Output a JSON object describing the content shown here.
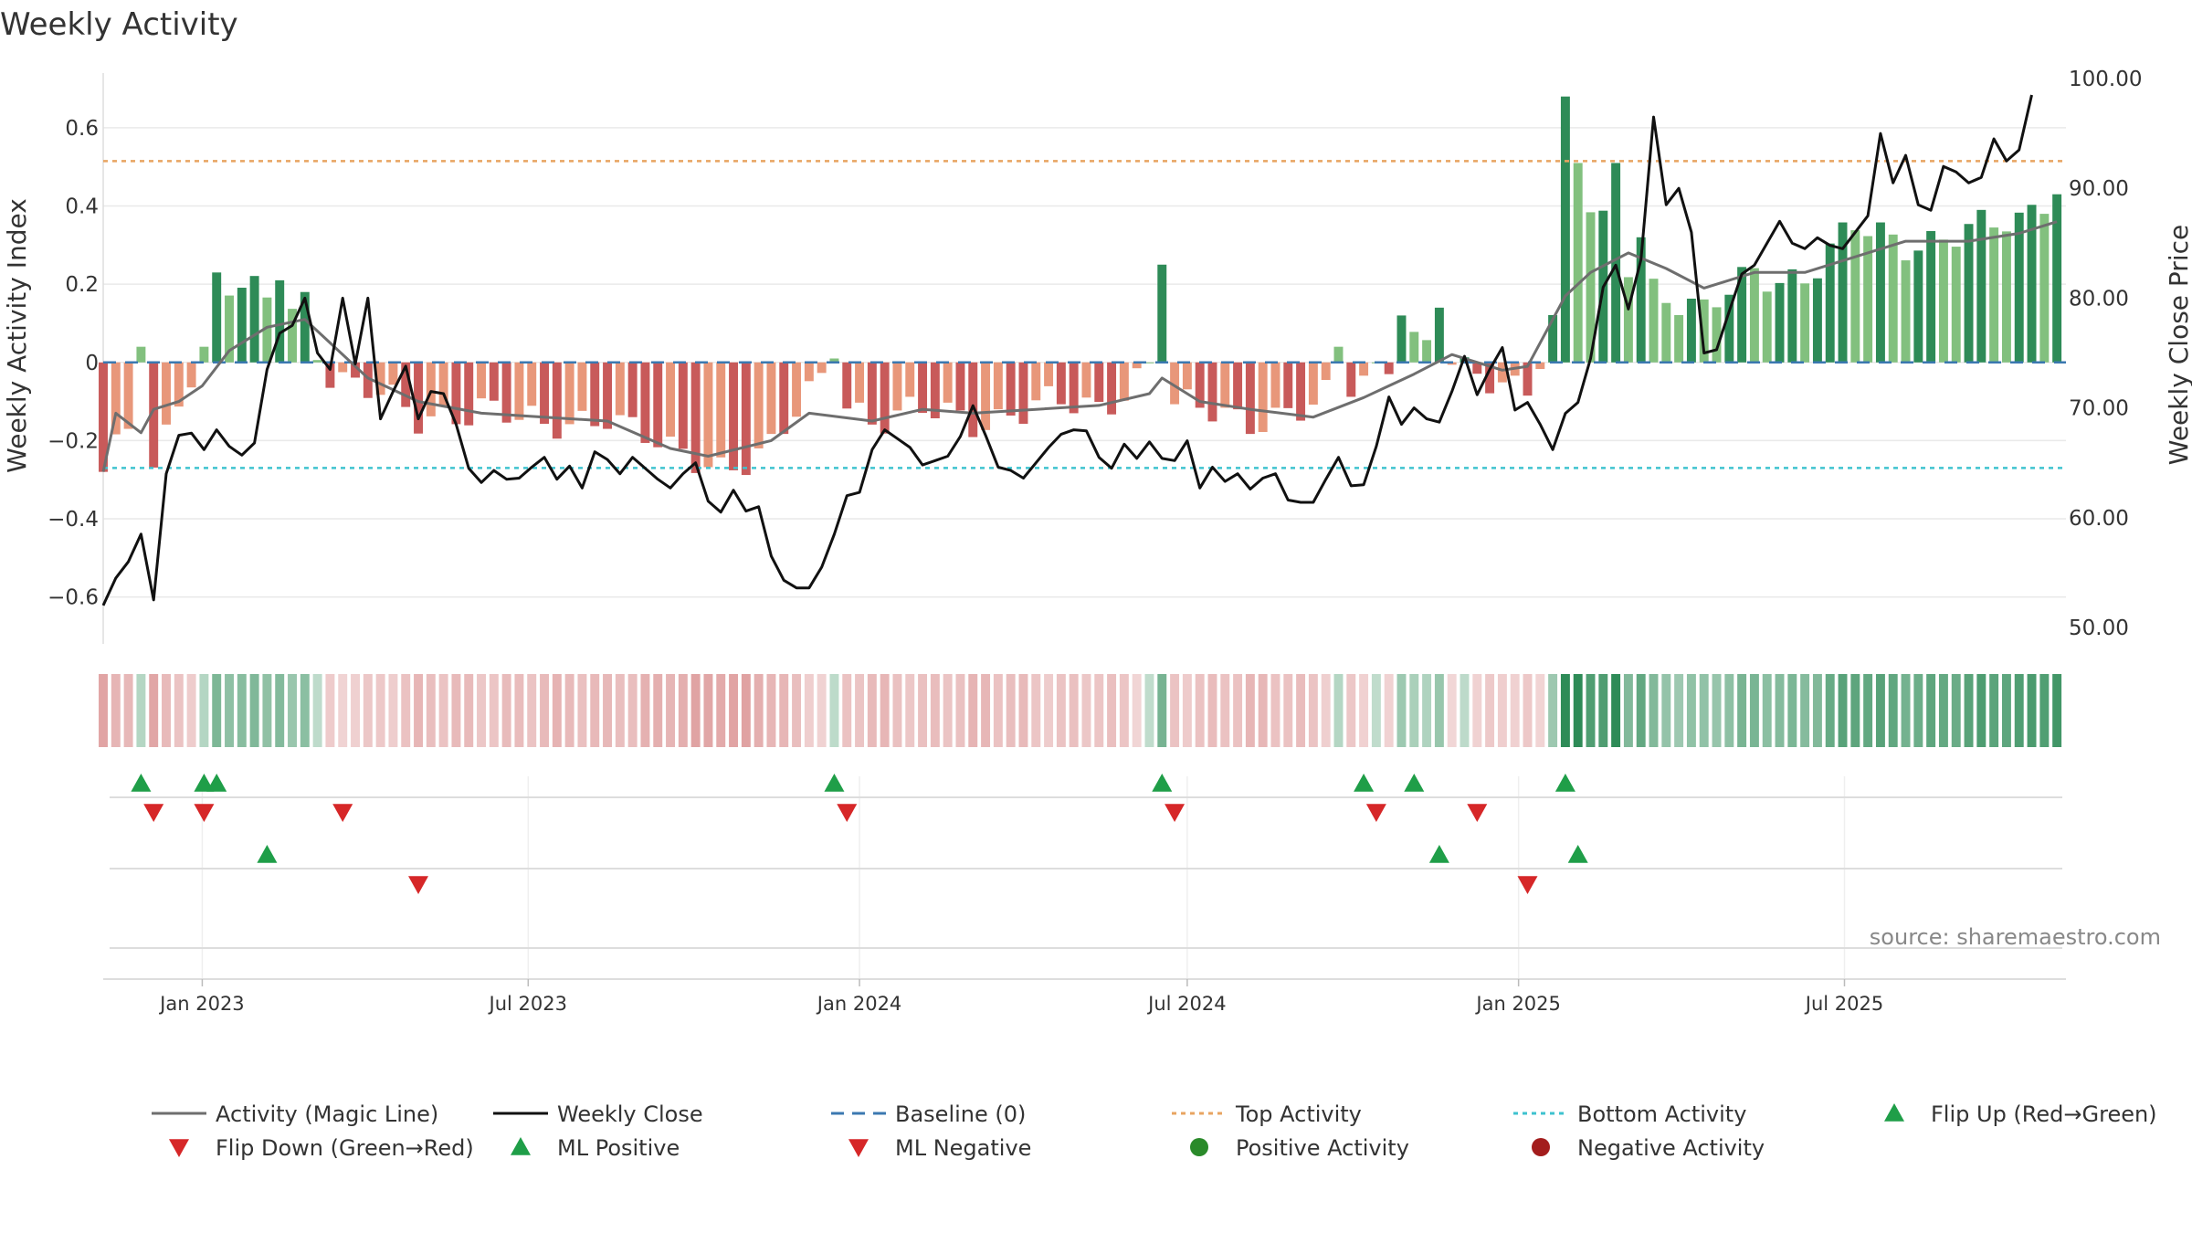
{
  "title": "Weekly Activity",
  "source": "source: sharemaestro.com",
  "colors": {
    "pos_dark": "#2e8b57",
    "pos_light": "#82c07e",
    "neg_dark": "#c85a5a",
    "neg_light": "#e8977a",
    "magic_line": "#6e6e6e",
    "close_line": "#111111",
    "baseline": "#3b78b0",
    "top_line": "#e8a461",
    "bottom_line": "#3ec2cf",
    "flip_up": "#1f9e48",
    "flip_down": "#d62728",
    "pos_dot": "#2a8a2a",
    "neg_dot": "#a31d1d",
    "grid": "#e9e9e9"
  },
  "chart_data": {
    "type": "bar",
    "title": "Weekly Activity",
    "ylabel_left": "Weekly Activity Index",
    "ylabel_right": "Weekly Close Price",
    "ylim_left": [
      -0.72,
      0.74
    ],
    "ylim_right": [
      48.5,
      100.5
    ],
    "yticks_left": [
      0.6,
      0.4,
      0.2,
      0,
      -0.2,
      -0.4,
      -0.6
    ],
    "yticks_left_labels": [
      "0.6",
      "0.4",
      "0.2",
      "0",
      "−0.2",
      "−0.4",
      "−0.6"
    ],
    "yticks_right": [
      100,
      90,
      80,
      70,
      60,
      50
    ],
    "yticks_right_labels": [
      "100.00",
      "90.00",
      "80.00",
      "70.00",
      "60.00",
      "50.00"
    ],
    "x_start": "2022-11-07",
    "x_end": "2025-11-01",
    "xticks": [
      "2023-01-01",
      "2023-07-01",
      "2024-01-01",
      "2024-07-01",
      "2025-01-01",
      "2025-07-01"
    ],
    "xtick_labels": [
      "Jan 2023",
      "Jul 2023",
      "Jan 2024",
      "Jul 2024",
      "Jan 2025",
      "Jul 2025"
    ],
    "top_activity": 0.515,
    "bottom_activity": -0.27,
    "baseline": 0,
    "anchors_activity": [
      {
        "date": "2022-11-07",
        "v": -0.28
      },
      {
        "date": "2022-11-21",
        "v": -0.18
      },
      {
        "date": "2022-12-05",
        "v": -0.3
      },
      {
        "date": "2022-12-19",
        "v": -0.08
      },
      {
        "date": "2023-01-02",
        "v": 0.03
      },
      {
        "date": "2023-01-16",
        "v": 0.21
      },
      {
        "date": "2023-02-06",
        "v": 0.15
      },
      {
        "date": "2023-02-27",
        "v": 0.1
      },
      {
        "date": "2023-03-13",
        "v": -0.02
      },
      {
        "date": "2023-04-03",
        "v": -0.06
      },
      {
        "date": "2023-05-01",
        "v": -0.16
      },
      {
        "date": "2023-06-05",
        "v": -0.1
      },
      {
        "date": "2023-07-10",
        "v": -0.18
      },
      {
        "date": "2023-08-14",
        "v": -0.12
      },
      {
        "date": "2023-09-18",
        "v": -0.24
      },
      {
        "date": "2023-10-16",
        "v": -0.26
      },
      {
        "date": "2023-11-13",
        "v": -0.22
      },
      {
        "date": "2023-12-11",
        "v": -0.05
      },
      {
        "date": "2024-01-08",
        "v": -0.14
      },
      {
        "date": "2024-02-05",
        "v": -0.13
      },
      {
        "date": "2024-03-04",
        "v": -0.15
      },
      {
        "date": "2024-04-08",
        "v": -0.11
      },
      {
        "date": "2024-05-13",
        "v": -0.12
      },
      {
        "date": "2024-06-10",
        "v": 0.0
      },
      {
        "date": "2024-06-24",
        "v": -0.12
      },
      {
        "date": "2024-08-05",
        "v": -0.14
      },
      {
        "date": "2024-09-09",
        "v": -0.12
      },
      {
        "date": "2024-10-07",
        "v": -0.04
      },
      {
        "date": "2024-11-04",
        "v": 0.06
      },
      {
        "date": "2024-12-02",
        "v": -0.04
      },
      {
        "date": "2025-01-06",
        "v": -0.05
      },
      {
        "date": "2025-01-20",
        "v": 0.1
      },
      {
        "date": "2025-02-10",
        "v": 0.38
      },
      {
        "date": "2025-03-10",
        "v": 0.22
      },
      {
        "date": "2025-04-14",
        "v": 0.12
      },
      {
        "date": "2025-05-12",
        "v": 0.23
      },
      {
        "date": "2025-06-09",
        "v": 0.22
      },
      {
        "date": "2025-07-07",
        "v": 0.34
      },
      {
        "date": "2025-08-04",
        "v": 0.31
      },
      {
        "date": "2025-09-08",
        "v": 0.33
      },
      {
        "date": "2025-10-06",
        "v": 0.36
      },
      {
        "date": "2025-10-20",
        "v": 0.43
      }
    ],
    "spikes": [
      {
        "date": "2022-11-28",
        "v": 0.04
      },
      {
        "date": "2023-01-09",
        "v": 0.23
      },
      {
        "date": "2023-02-13",
        "v": 0.21
      },
      {
        "date": "2023-02-27",
        "v": 0.18
      },
      {
        "date": "2023-12-18",
        "v": 0.01
      },
      {
        "date": "2024-06-17",
        "v": 0.25
      },
      {
        "date": "2024-09-23",
        "v": 0.04
      },
      {
        "date": "2024-10-28",
        "v": 0.12
      },
      {
        "date": "2024-11-18",
        "v": 0.14
      },
      {
        "date": "2025-01-27",
        "v": 0.68
      },
      {
        "date": "2025-02-03",
        "v": 0.51
      },
      {
        "date": "2025-02-24",
        "v": 0.51
      },
      {
        "date": "2025-03-10",
        "v": 0.32
      },
      {
        "date": "2025-10-27",
        "v": 0.43
      }
    ],
    "magic_line": [
      {
        "date": "2022-11-07",
        "v": -0.28
      },
      {
        "date": "2022-11-14",
        "v": -0.13
      },
      {
        "date": "2022-11-28",
        "v": -0.18
      },
      {
        "date": "2022-12-05",
        "v": -0.12
      },
      {
        "date": "2022-12-19",
        "v": -0.1
      },
      {
        "date": "2023-01-01",
        "v": -0.06
      },
      {
        "date": "2023-01-16",
        "v": 0.03
      },
      {
        "date": "2023-02-06",
        "v": 0.09
      },
      {
        "date": "2023-02-27",
        "v": 0.11
      },
      {
        "date": "2023-03-13",
        "v": 0.05
      },
      {
        "date": "2023-04-03",
        "v": -0.04
      },
      {
        "date": "2023-05-01",
        "v": -0.1
      },
      {
        "date": "2023-06-05",
        "v": -0.13
      },
      {
        "date": "2023-07-10",
        "v": -0.14
      },
      {
        "date": "2023-08-14",
        "v": -0.15
      },
      {
        "date": "2023-09-18",
        "v": -0.22
      },
      {
        "date": "2023-10-09",
        "v": -0.24
      },
      {
        "date": "2023-11-13",
        "v": -0.2
      },
      {
        "date": "2023-12-04",
        "v": -0.13
      },
      {
        "date": "2024-01-08",
        "v": -0.15
      },
      {
        "date": "2024-02-05",
        "v": -0.12
      },
      {
        "date": "2024-03-04",
        "v": -0.13
      },
      {
        "date": "2024-04-08",
        "v": -0.12
      },
      {
        "date": "2024-05-13",
        "v": -0.11
      },
      {
        "date": "2024-06-10",
        "v": -0.08
      },
      {
        "date": "2024-06-17",
        "v": -0.04
      },
      {
        "date": "2024-07-08",
        "v": -0.1
      },
      {
        "date": "2024-08-05",
        "v": -0.12
      },
      {
        "date": "2024-09-09",
        "v": -0.14
      },
      {
        "date": "2024-10-07",
        "v": -0.09
      },
      {
        "date": "2024-11-04",
        "v": -0.03
      },
      {
        "date": "2024-11-25",
        "v": 0.02
      },
      {
        "date": "2024-12-23",
        "v": -0.02
      },
      {
        "date": "2025-01-06",
        "v": -0.01
      },
      {
        "date": "2025-01-27",
        "v": 0.17
      },
      {
        "date": "2025-02-10",
        "v": 0.23
      },
      {
        "date": "2025-03-03",
        "v": 0.28
      },
      {
        "date": "2025-03-24",
        "v": 0.24
      },
      {
        "date": "2025-04-14",
        "v": 0.19
      },
      {
        "date": "2025-05-12",
        "v": 0.23
      },
      {
        "date": "2025-06-09",
        "v": 0.23
      },
      {
        "date": "2025-07-07",
        "v": 0.27
      },
      {
        "date": "2025-08-04",
        "v": 0.31
      },
      {
        "date": "2025-09-08",
        "v": 0.31
      },
      {
        "date": "2025-10-06",
        "v": 0.33
      },
      {
        "date": "2025-10-27",
        "v": 0.36
      }
    ],
    "weekly_close": [
      {
        "date": "2022-11-07",
        "v": 52.0
      },
      {
        "date": "2022-11-14",
        "v": 54.5
      },
      {
        "date": "2022-11-21",
        "v": 56.0
      },
      {
        "date": "2022-11-28",
        "v": 58.5
      },
      {
        "date": "2022-12-05",
        "v": 52.5
      },
      {
        "date": "2022-12-12",
        "v": 64.0
      },
      {
        "date": "2022-12-19",
        "v": 67.5
      },
      {
        "date": "2022-12-26",
        "v": 67.7
      },
      {
        "date": "2023-01-02",
        "v": 66.2
      },
      {
        "date": "2023-01-09",
        "v": 68.0
      },
      {
        "date": "2023-01-16",
        "v": 66.5
      },
      {
        "date": "2023-01-23",
        "v": 65.7
      },
      {
        "date": "2023-01-30",
        "v": 66.8
      },
      {
        "date": "2023-02-06",
        "v": 73.5
      },
      {
        "date": "2023-02-13",
        "v": 76.8
      },
      {
        "date": "2023-02-20",
        "v": 77.5
      },
      {
        "date": "2023-02-27",
        "v": 80.0
      },
      {
        "date": "2023-03-06",
        "v": 75.0
      },
      {
        "date": "2023-03-13",
        "v": 73.5
      },
      {
        "date": "2023-03-20",
        "v": 80.0
      },
      {
        "date": "2023-03-27",
        "v": 74.0
      },
      {
        "date": "2023-04-03",
        "v": 80.0
      },
      {
        "date": "2023-04-10",
        "v": 69.0
      },
      {
        "date": "2023-04-17",
        "v": 71.5
      },
      {
        "date": "2023-04-24",
        "v": 73.8
      },
      {
        "date": "2023-05-01",
        "v": 69.0
      },
      {
        "date": "2023-05-08",
        "v": 71.5
      },
      {
        "date": "2023-05-15",
        "v": 71.3
      },
      {
        "date": "2023-05-22",
        "v": 68.5
      },
      {
        "date": "2023-05-29",
        "v": 64.5
      },
      {
        "date": "2023-06-05",
        "v": 63.2
      },
      {
        "date": "2023-06-12",
        "v": 64.3
      },
      {
        "date": "2023-06-19",
        "v": 63.5
      },
      {
        "date": "2023-06-26",
        "v": 63.6
      },
      {
        "date": "2023-07-03",
        "v": 64.6
      },
      {
        "date": "2023-07-10",
        "v": 65.5
      },
      {
        "date": "2023-07-17",
        "v": 63.5
      },
      {
        "date": "2023-07-24",
        "v": 64.7
      },
      {
        "date": "2023-07-31",
        "v": 62.7
      },
      {
        "date": "2023-08-07",
        "v": 66.0
      },
      {
        "date": "2023-08-14",
        "v": 65.3
      },
      {
        "date": "2023-08-21",
        "v": 64.0
      },
      {
        "date": "2023-08-28",
        "v": 65.5
      },
      {
        "date": "2023-09-04",
        "v": 64.5
      },
      {
        "date": "2023-09-11",
        "v": 63.5
      },
      {
        "date": "2023-09-18",
        "v": 62.7
      },
      {
        "date": "2023-09-25",
        "v": 64.0
      },
      {
        "date": "2023-10-02",
        "v": 65.0
      },
      {
        "date": "2023-10-09",
        "v": 61.5
      },
      {
        "date": "2023-10-16",
        "v": 60.5
      },
      {
        "date": "2023-10-23",
        "v": 62.5
      },
      {
        "date": "2023-10-30",
        "v": 60.6
      },
      {
        "date": "2023-11-06",
        "v": 61.0
      },
      {
        "date": "2023-11-13",
        "v": 56.5
      },
      {
        "date": "2023-11-20",
        "v": 54.3
      },
      {
        "date": "2023-11-27",
        "v": 53.6
      },
      {
        "date": "2023-12-04",
        "v": 53.6
      },
      {
        "date": "2023-12-11",
        "v": 55.5
      },
      {
        "date": "2023-12-18",
        "v": 58.5
      },
      {
        "date": "2023-12-25",
        "v": 62.0
      },
      {
        "date": "2024-01-01",
        "v": 62.3
      },
      {
        "date": "2024-01-08",
        "v": 66.2
      },
      {
        "date": "2024-01-15",
        "v": 68.0
      },
      {
        "date": "2024-01-22",
        "v": 67.2
      },
      {
        "date": "2024-01-29",
        "v": 66.4
      },
      {
        "date": "2024-02-05",
        "v": 64.8
      },
      {
        "date": "2024-02-12",
        "v": 65.2
      },
      {
        "date": "2024-02-19",
        "v": 65.6
      },
      {
        "date": "2024-02-26",
        "v": 67.4
      },
      {
        "date": "2024-03-04",
        "v": 70.2
      },
      {
        "date": "2024-03-11",
        "v": 67.5
      },
      {
        "date": "2024-03-18",
        "v": 64.6
      },
      {
        "date": "2024-03-25",
        "v": 64.3
      },
      {
        "date": "2024-04-01",
        "v": 63.6
      },
      {
        "date": "2024-04-08",
        "v": 65.0
      },
      {
        "date": "2024-04-15",
        "v": 66.4
      },
      {
        "date": "2024-04-22",
        "v": 67.6
      },
      {
        "date": "2024-04-29",
        "v": 68.0
      },
      {
        "date": "2024-05-06",
        "v": 67.9
      },
      {
        "date": "2024-05-13",
        "v": 65.5
      },
      {
        "date": "2024-05-20",
        "v": 64.5
      },
      {
        "date": "2024-05-27",
        "v": 66.7
      },
      {
        "date": "2024-06-03",
        "v": 65.4
      },
      {
        "date": "2024-06-10",
        "v": 66.9
      },
      {
        "date": "2024-06-17",
        "v": 65.4
      },
      {
        "date": "2024-06-24",
        "v": 65.2
      },
      {
        "date": "2024-07-01",
        "v": 67.0
      },
      {
        "date": "2024-07-08",
        "v": 62.7
      },
      {
        "date": "2024-07-15",
        "v": 64.6
      },
      {
        "date": "2024-07-22",
        "v": 63.3
      },
      {
        "date": "2024-07-29",
        "v": 64.0
      },
      {
        "date": "2024-08-05",
        "v": 62.6
      },
      {
        "date": "2024-08-12",
        "v": 63.6
      },
      {
        "date": "2024-08-19",
        "v": 64.0
      },
      {
        "date": "2024-08-26",
        "v": 61.6
      },
      {
        "date": "2024-09-02",
        "v": 61.4
      },
      {
        "date": "2024-09-09",
        "v": 61.4
      },
      {
        "date": "2024-09-16",
        "v": 63.5
      },
      {
        "date": "2024-09-23",
        "v": 65.5
      },
      {
        "date": "2024-09-30",
        "v": 62.9
      },
      {
        "date": "2024-10-07",
        "v": 63.0
      },
      {
        "date": "2024-10-14",
        "v": 66.5
      },
      {
        "date": "2024-10-21",
        "v": 71.0
      },
      {
        "date": "2024-10-28",
        "v": 68.5
      },
      {
        "date": "2024-11-04",
        "v": 70.0
      },
      {
        "date": "2024-11-11",
        "v": 69.0
      },
      {
        "date": "2024-11-18",
        "v": 68.7
      },
      {
        "date": "2024-11-25",
        "v": 71.5
      },
      {
        "date": "2024-12-02",
        "v": 74.7
      },
      {
        "date": "2024-12-09",
        "v": 71.2
      },
      {
        "date": "2024-12-16",
        "v": 73.5
      },
      {
        "date": "2024-12-23",
        "v": 75.5
      },
      {
        "date": "2024-12-30",
        "v": 69.8
      },
      {
        "date": "2025-01-06",
        "v": 70.5
      },
      {
        "date": "2025-01-13",
        "v": 68.5
      },
      {
        "date": "2025-01-20",
        "v": 66.2
      },
      {
        "date": "2025-01-27",
        "v": 69.5
      },
      {
        "date": "2025-02-03",
        "v": 70.5
      },
      {
        "date": "2025-02-10",
        "v": 74.5
      },
      {
        "date": "2025-02-17",
        "v": 81.0
      },
      {
        "date": "2025-02-24",
        "v": 83.0
      },
      {
        "date": "2025-03-03",
        "v": 79.0
      },
      {
        "date": "2025-03-10",
        "v": 83.5
      },
      {
        "date": "2025-03-17",
        "v": 96.5
      },
      {
        "date": "2025-03-24",
        "v": 88.5
      },
      {
        "date": "2025-03-31",
        "v": 90.0
      },
      {
        "date": "2025-04-07",
        "v": 86.0
      },
      {
        "date": "2025-04-14",
        "v": 75.0
      },
      {
        "date": "2025-04-21",
        "v": 75.3
      },
      {
        "date": "2025-04-28",
        "v": 78.8
      },
      {
        "date": "2025-05-05",
        "v": 82.2
      },
      {
        "date": "2025-05-12",
        "v": 83.0
      },
      {
        "date": "2025-05-19",
        "v": 85.0
      },
      {
        "date": "2025-05-26",
        "v": 87.0
      },
      {
        "date": "2025-06-02",
        "v": 85.0
      },
      {
        "date": "2025-06-09",
        "v": 84.5
      },
      {
        "date": "2025-06-16",
        "v": 85.5
      },
      {
        "date": "2025-06-23",
        "v": 84.8
      },
      {
        "date": "2025-06-30",
        "v": 84.5
      },
      {
        "date": "2025-07-07",
        "v": 86.0
      },
      {
        "date": "2025-07-14",
        "v": 87.5
      },
      {
        "date": "2025-07-21",
        "v": 95.0
      },
      {
        "date": "2025-07-28",
        "v": 90.5
      },
      {
        "date": "2025-08-04",
        "v": 93.0
      },
      {
        "date": "2025-08-11",
        "v": 88.5
      },
      {
        "date": "2025-08-18",
        "v": 88.0
      },
      {
        "date": "2025-08-25",
        "v": 92.0
      },
      {
        "date": "2025-09-01",
        "v": 91.5
      },
      {
        "date": "2025-09-08",
        "v": 90.5
      },
      {
        "date": "2025-09-15",
        "v": 91.0
      },
      {
        "date": "2025-09-22",
        "v": 94.5
      },
      {
        "date": "2025-09-29",
        "v": 92.5
      },
      {
        "date": "2025-10-06",
        "v": 93.5
      },
      {
        "date": "2025-10-13",
        "v": 98.5
      }
    ],
    "flip_up": [
      "2022-11-28",
      "2023-01-02",
      "2023-01-09",
      "2023-12-18",
      "2024-06-17",
      "2024-10-07",
      "2024-11-04",
      "2025-01-27"
    ],
    "flip_down": [
      "2022-12-05",
      "2023-01-02",
      "2023-03-20",
      "2023-12-25",
      "2024-06-24",
      "2024-10-14",
      "2024-12-09"
    ],
    "ml_positive": [
      "2023-02-06",
      "2024-11-18",
      "2025-02-03"
    ],
    "ml_negative": [
      "2023-05-01",
      "2025-01-06"
    ]
  },
  "legend": [
    {
      "label": "Activity (Magic Line)",
      "kind": "line-solid",
      "color": "#6e6e6e"
    },
    {
      "label": "Weekly Close",
      "kind": "line-solid",
      "color": "#111111"
    },
    {
      "label": "Baseline (0)",
      "kind": "line-dashed",
      "color": "#3b78b0"
    },
    {
      "label": "Top Activity",
      "kind": "line-dotted",
      "color": "#e8a461"
    },
    {
      "label": "Bottom Activity",
      "kind": "line-dotted",
      "color": "#3ec2cf"
    },
    {
      "label": "Flip Up (Red→Green)",
      "kind": "tri-up",
      "color": "#1f9e48"
    },
    {
      "label": "Flip Down (Green→Red)",
      "kind": "tri-down",
      "color": "#d62728"
    },
    {
      "label": "ML Positive",
      "kind": "tri-up",
      "color": "#1f9e48"
    },
    {
      "label": "ML Negative",
      "kind": "tri-down",
      "color": "#d62728"
    },
    {
      "label": "Positive Activity",
      "kind": "dot",
      "color": "#2a8a2a"
    },
    {
      "label": "Negative Activity",
      "kind": "dot",
      "color": "#a31d1d"
    }
  ]
}
